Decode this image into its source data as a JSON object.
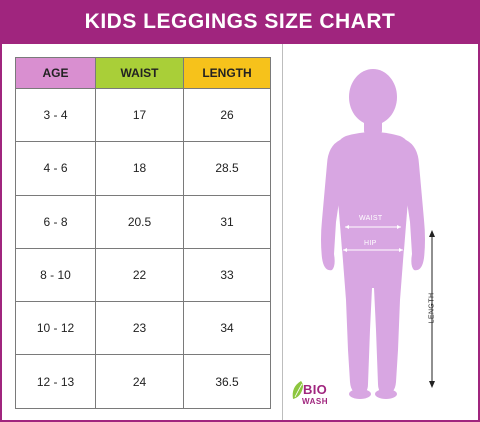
{
  "title": "KIDS LEGGINGS SIZE CHART",
  "table": {
    "headers": [
      {
        "label": "AGE",
        "color": "#d98fd0"
      },
      {
        "label": "WAIST",
        "color": "#a9cf38"
      },
      {
        "label": "LENGTH",
        "color": "#f6c21b"
      }
    ],
    "rows": [
      [
        "3 - 4",
        "17",
        "26"
      ],
      [
        "4 - 6",
        "18",
        "28.5"
      ],
      [
        "6 - 8",
        "20.5",
        "31"
      ],
      [
        "8 - 10",
        "22",
        "33"
      ],
      [
        "10 - 12",
        "23",
        "34"
      ],
      [
        "12 - 13",
        "24",
        "36.5"
      ]
    ]
  },
  "figure": {
    "waist_label": "WAIST",
    "hip_label": "HIP",
    "length_label": "LENGTH",
    "body_color": "#d8a6e2"
  },
  "logo": {
    "line1": "BIO",
    "line2": "WASH",
    "color": "#a0257e",
    "leaf_color": "#8dc63f"
  },
  "colors": {
    "brand": "#a0257e"
  }
}
